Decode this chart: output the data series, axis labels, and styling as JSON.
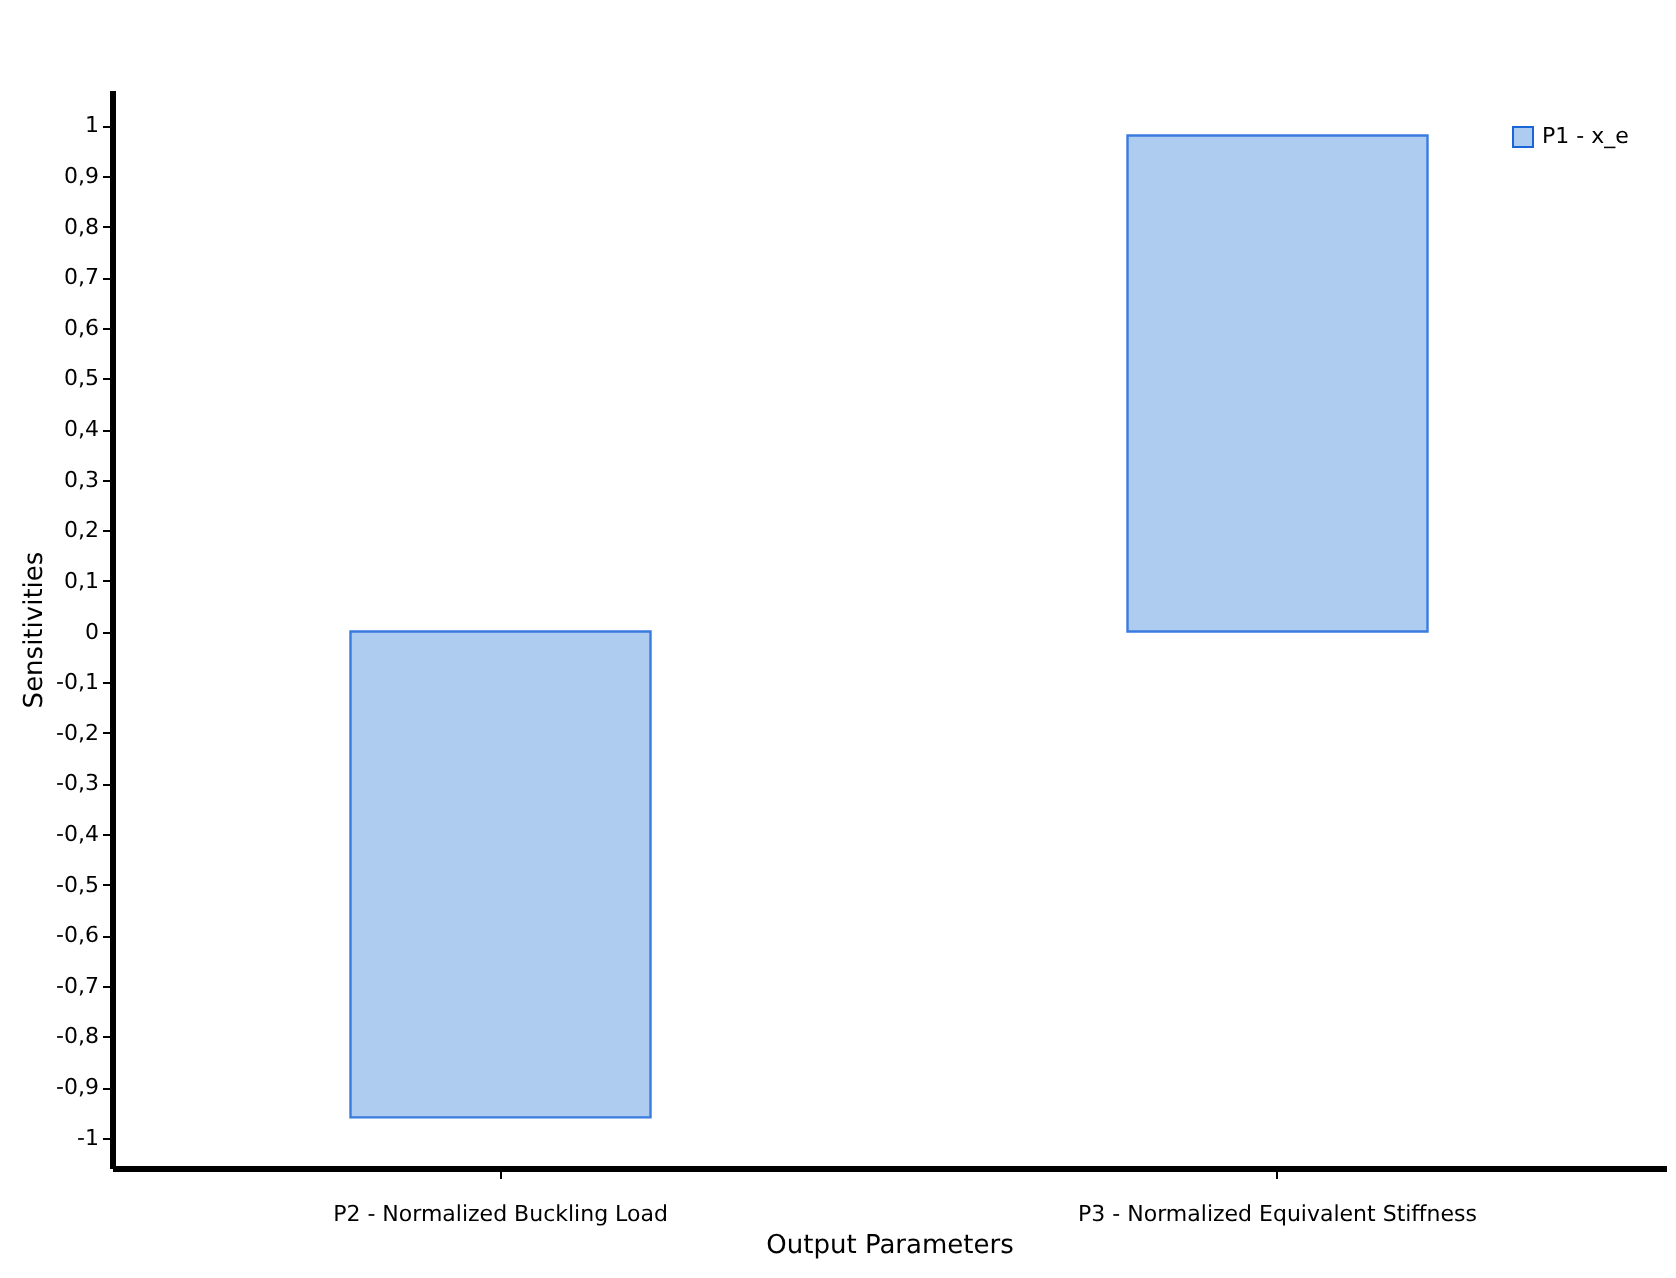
{
  "chart_data": {
    "type": "bar",
    "xlabel": "Output Parameters",
    "ylabel": "Sensitivities",
    "categories": [
      "P2 - Normalized Buckling Load",
      "P3 - Normalized Equivalent Stiffness"
    ],
    "series": [
      {
        "name": "P1 - x_e",
        "color": "#aecbf0",
        "values": [
          -0.96,
          0.98
        ]
      }
    ],
    "ylim": [
      -1.06,
      1.07
    ],
    "yticks": [
      {
        "value": -1,
        "label": "-1"
      },
      {
        "value": -0.9,
        "label": "-0,9"
      },
      {
        "value": -0.8,
        "label": "-0,8"
      },
      {
        "value": -0.7,
        "label": "-0,7"
      },
      {
        "value": -0.6,
        "label": "-0,6"
      },
      {
        "value": -0.5,
        "label": "-0,5"
      },
      {
        "value": -0.4,
        "label": "-0,4"
      },
      {
        "value": -0.3,
        "label": "-0,3"
      },
      {
        "value": -0.2,
        "label": "-0,2"
      },
      {
        "value": -0.1,
        "label": "-0,1"
      },
      {
        "value": 0,
        "label": "0"
      },
      {
        "value": 0.1,
        "label": "0,1"
      },
      {
        "value": 0.2,
        "label": "0,2"
      },
      {
        "value": 0.3,
        "label": "0,3"
      },
      {
        "value": 0.4,
        "label": "0,4"
      },
      {
        "value": 0.5,
        "label": "0,5"
      },
      {
        "value": 0.6,
        "label": "0,6"
      },
      {
        "value": 0.7,
        "label": "0,7"
      },
      {
        "value": 0.8,
        "label": "0,8"
      },
      {
        "value": 0.9,
        "label": "0,9"
      },
      {
        "value": 1,
        "label": "1"
      }
    ],
    "legend": "top right",
    "grid": false
  }
}
